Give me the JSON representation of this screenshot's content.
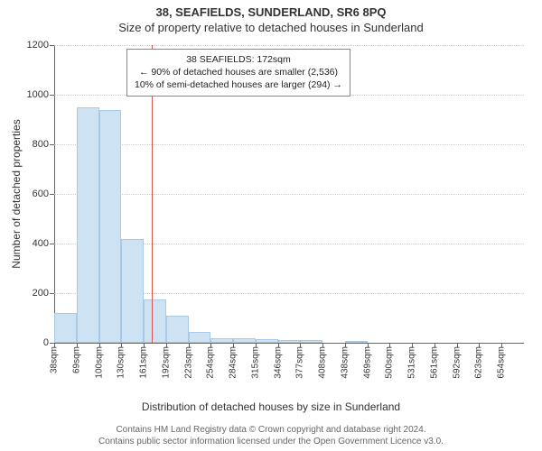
{
  "header": {
    "title": "38, SEAFIELDS, SUNDERLAND, SR6 8PQ",
    "subtitle": "Size of property relative to detached houses in Sunderland"
  },
  "chart": {
    "type": "histogram",
    "ylabel": "Number of detached properties",
    "xlabel": "Distribution of detached houses by size in Sunderland",
    "ylim": [
      0,
      1200
    ],
    "ytick_step": 200,
    "background_color": "#ffffff",
    "grid_color": "#cccccc",
    "bar_fill": "#cde3f4",
    "bar_stroke": "#aac9e4",
    "axis_color": "#666666",
    "xticks": [
      "38sqm",
      "69sqm",
      "100sqm",
      "130sqm",
      "161sqm",
      "192sqm",
      "223sqm",
      "254sqm",
      "284sqm",
      "315sqm",
      "346sqm",
      "377sqm",
      "408sqm",
      "438sqm",
      "469sqm",
      "500sqm",
      "531sqm",
      "561sqm",
      "592sqm",
      "623sqm",
      "654sqm"
    ],
    "values": [
      120,
      950,
      940,
      420,
      175,
      110,
      45,
      20,
      18,
      14,
      12,
      10,
      0,
      6,
      0,
      0,
      0,
      0,
      0,
      0
    ],
    "reference": {
      "value_sqm": 172,
      "line_color": "#d9534f",
      "callout_lines": [
        "38 SEAFIELDS: 172sqm",
        "← 90% of detached houses are smaller (2,536)",
        "10% of semi-detached houses are larger (294) →"
      ]
    }
  },
  "footer": {
    "line1": "Contains HM Land Registry data © Crown copyright and database right 2024.",
    "line2": "Contains public sector information licensed under the Open Government Licence v3.0."
  }
}
